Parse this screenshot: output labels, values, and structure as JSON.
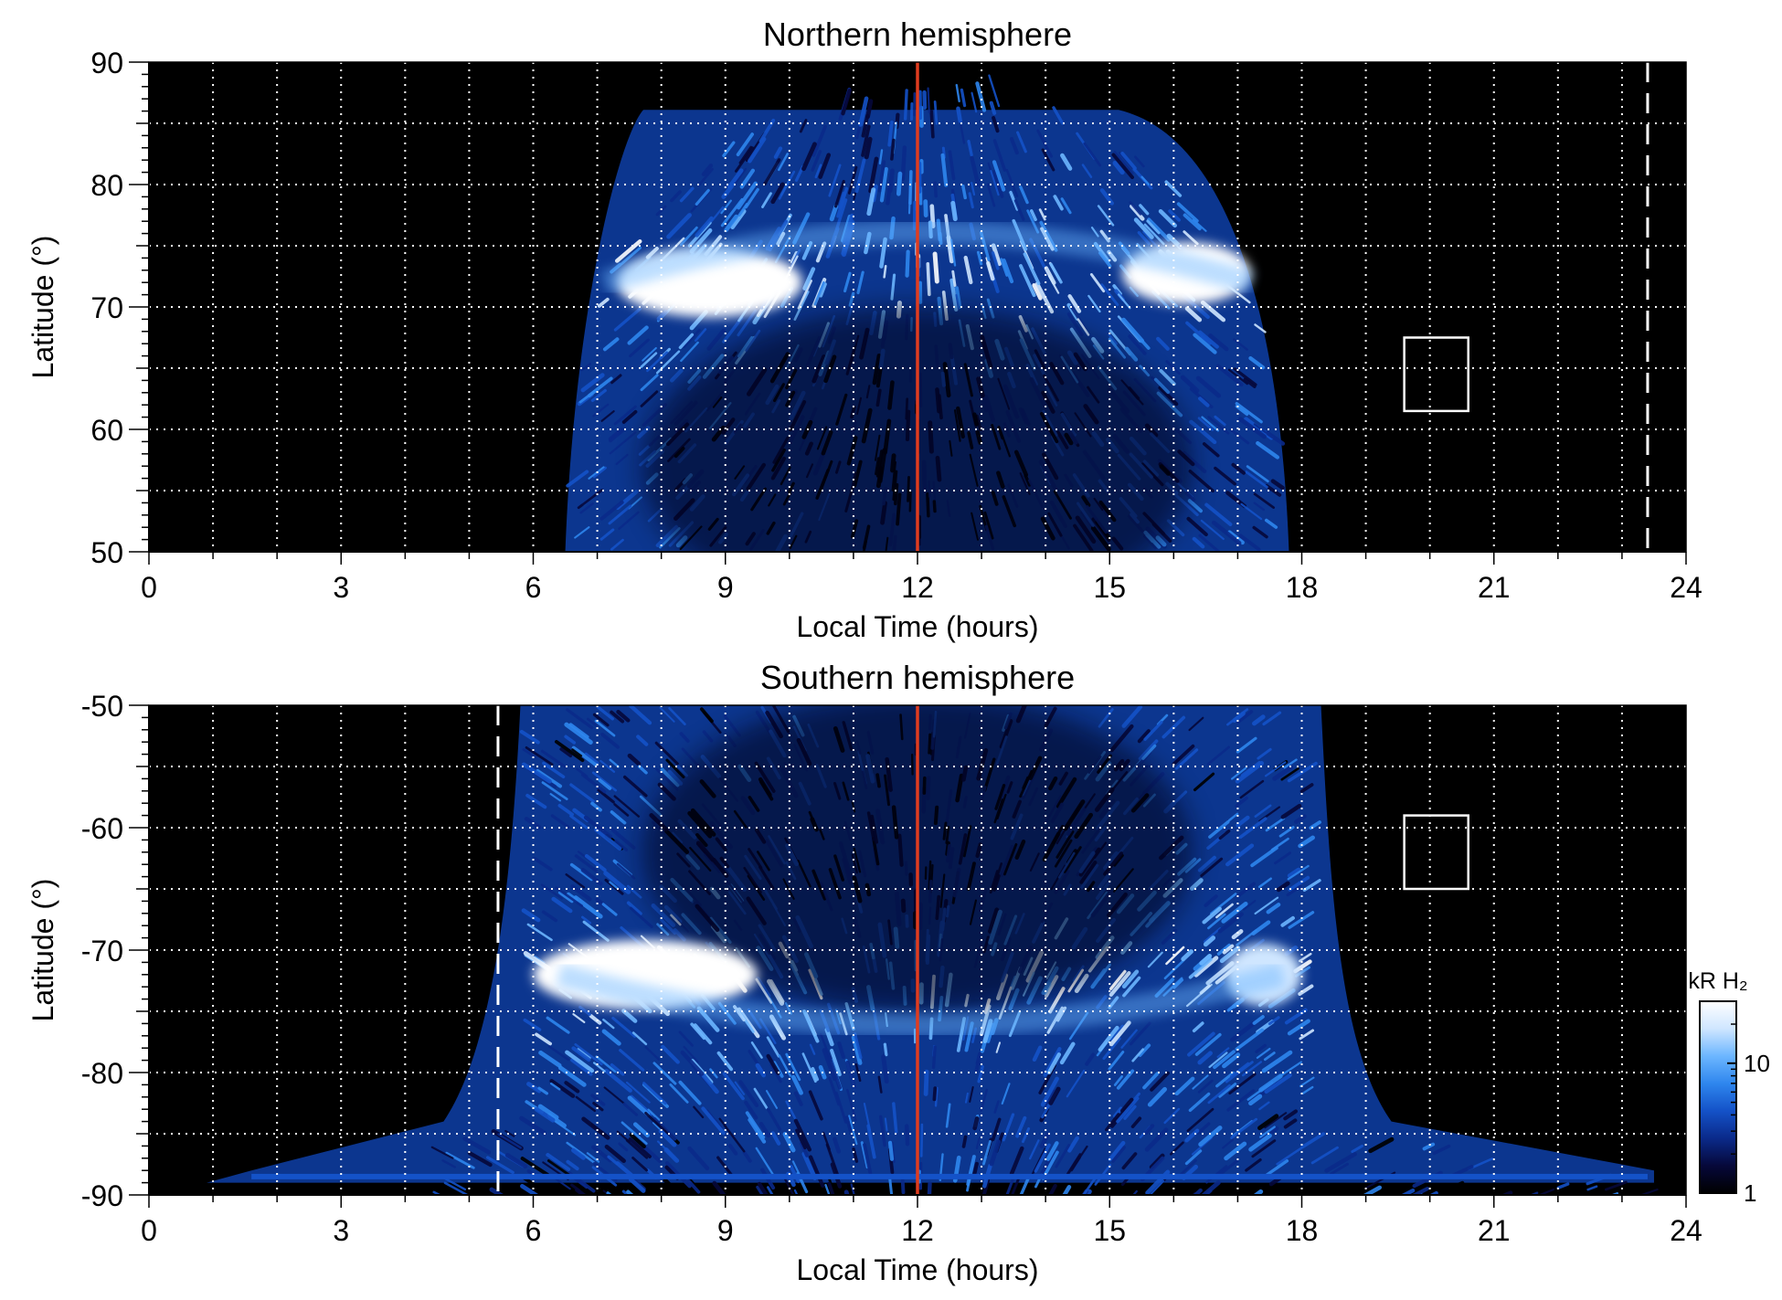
{
  "chart_data": [
    {
      "type": "heatmap",
      "title": "Northern hemisphere",
      "xlabel": "Local Time (hours)",
      "ylabel": "Latitude (°)",
      "xlim": [
        0,
        24
      ],
      "ylim": [
        50,
        90
      ],
      "xticks": [
        "0",
        "3",
        "6",
        "9",
        "12",
        "15",
        "18",
        "21",
        "24"
      ],
      "yticks": [
        "50",
        "60",
        "70",
        "80",
        "90"
      ],
      "grid": true,
      "noon_line_lt": 12,
      "dashed_line_lt": 23.4,
      "box": {
        "lt": [
          19.6,
          20.6
        ],
        "lat": [
          61.5,
          67.5
        ]
      },
      "emission": {
        "dayside_lt": [
          6.5,
          17.8
        ],
        "polar_cap_top_lat": 87,
        "main_oval": {
          "lat_center": 72,
          "bright_lt_dawn": [
            7.3,
            10.2
          ],
          "bright_lt_dusk": [
            15.2,
            17.2
          ]
        },
        "dark_region_center": {
          "lt": 12,
          "lat": 57
        }
      }
    },
    {
      "type": "heatmap",
      "title": "Southern hemisphere",
      "xlabel": "Local Time (hours)",
      "ylabel": "Latitude (°)",
      "xlim": [
        0,
        24
      ],
      "ylim": [
        -90,
        -50
      ],
      "xticks": [
        "0",
        "3",
        "6",
        "9",
        "12",
        "15",
        "18",
        "21",
        "24"
      ],
      "yticks": [
        "-50",
        "-60",
        "-70",
        "-80",
        "-90"
      ],
      "grid": true,
      "noon_line_lt": 12,
      "dashed_line_lt": 5.45,
      "box": {
        "lt": [
          19.6,
          20.6
        ],
        "lat": [
          -65,
          -59
        ]
      },
      "emission": {
        "dayside_lt": [
          5.8,
          18.3
        ],
        "polar_strip_lat": -88.5,
        "main_oval": {
          "lat_center": -72,
          "bright_lt_dawn": [
            6.0,
            9.5
          ],
          "bright_lt_dusk": [
            16.8,
            18.0
          ]
        },
        "dark_region_center": {
          "lt": 12,
          "lat": -62
        }
      }
    }
  ],
  "colorbar": {
    "label": "kR H₂",
    "ticks": [
      "10",
      "1"
    ],
    "scale": "log",
    "range": [
      1,
      30
    ],
    "colors": [
      "#000000",
      "#06083a",
      "#0a2a8a",
      "#1452c8",
      "#2e86ee",
      "#6cb6ff",
      "#cfe6ff",
      "#ffffff"
    ]
  },
  "colors": {
    "noon_line": "#e03c1f",
    "grid": "#ffffff",
    "background": "#000000"
  }
}
